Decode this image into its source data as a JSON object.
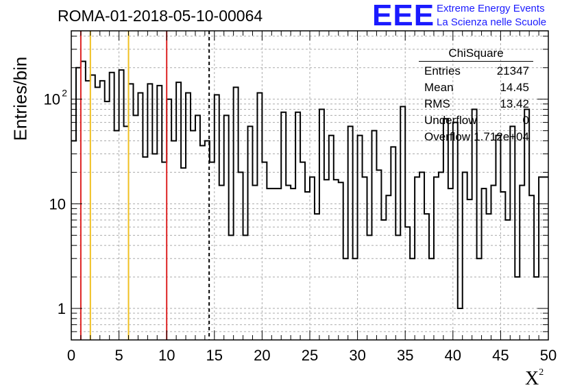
{
  "title": "ROMA-01-2018-05-10-00064",
  "logo": {
    "text": "EEE",
    "line1": "Extreme Energy Events",
    "line2": "La Scienza nelle Scuole",
    "color": "#1a1aff"
  },
  "stats": {
    "title": "ChiSquare",
    "rows": [
      {
        "key": "Entries",
        "value": "21347"
      },
      {
        "key": "Mean",
        "value": "14.45"
      },
      {
        "key": "RMS",
        "value": "13.42"
      },
      {
        "key": "Underflow",
        "value": "0"
      },
      {
        "key": "Overflow",
        "value": "1.712e+04"
      }
    ]
  },
  "chart_data": {
    "type": "histogram",
    "title": "ROMA-01-2018-05-10-00064",
    "xlabel": "X",
    "xlabel_sup": "2",
    "ylabel": "Entries/bin",
    "xlim": [
      0,
      50
    ],
    "ylim": [
      0.5,
      450
    ],
    "yscale": "log",
    "grid": true,
    "bin_width": 0.5,
    "xticks": [
      "0",
      "5",
      "10",
      "15",
      "20",
      "25",
      "30",
      "35",
      "40",
      "45",
      "50"
    ],
    "yticks": [
      {
        "value": 1,
        "label": "1",
        "sup": ""
      },
      {
        "value": 10,
        "label": "10",
        "sup": ""
      },
      {
        "value": 100,
        "label": "10",
        "sup": "2"
      }
    ],
    "values": [
      40,
      200,
      230,
      150,
      170,
      130,
      150,
      95,
      180,
      50,
      190,
      55,
      140,
      70,
      115,
      28,
      140,
      30,
      135,
      25,
      100,
      40,
      145,
      22,
      115,
      50,
      70,
      36,
      40,
      25,
      110,
      15,
      70,
      5,
      130,
      20,
      5,
      55,
      15,
      115,
      25,
      14,
      14,
      14,
      75,
      15,
      14,
      75,
      25,
      13,
      18,
      8,
      80,
      17,
      45,
      17,
      16,
      3,
      55,
      3,
      45,
      18,
      5,
      50,
      21,
      7,
      12,
      35,
      5,
      85,
      6,
      3,
      18,
      20,
      8,
      3,
      18,
      20,
      65,
      14,
      60,
      1,
      20,
      11,
      80,
      3,
      14,
      8,
      15,
      45,
      13,
      7,
      55,
      2,
      15,
      80,
      12,
      2,
      18,
      18
    ],
    "vlines": [
      {
        "x": 1,
        "color": "#dd2222",
        "style": "solid"
      },
      {
        "x": 2,
        "color": "#f0c020",
        "style": "solid"
      },
      {
        "x": 6,
        "color": "#f0c020",
        "style": "solid"
      },
      {
        "x": 10,
        "color": "#dd2222",
        "style": "solid"
      },
      {
        "x": 14.45,
        "color": "#000000",
        "style": "dashed"
      }
    ]
  }
}
